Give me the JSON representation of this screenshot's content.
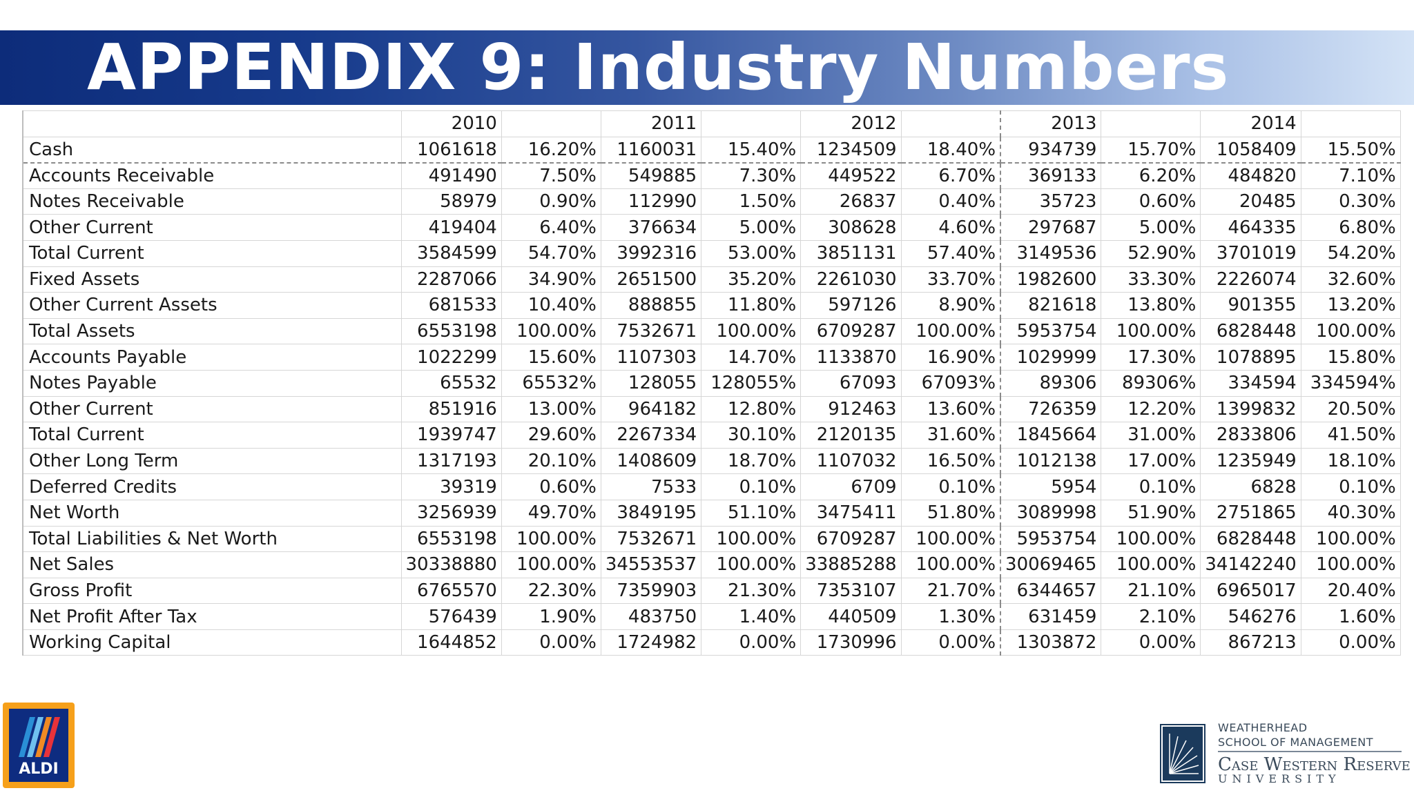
{
  "title": "APPENDIX 9: Industry Numbers",
  "table": {
    "years": [
      "2010",
      "2011",
      "2012",
      "2013",
      "2014"
    ],
    "rows": [
      {
        "label": "Cash",
        "values": [
          "1061618",
          "16.20%",
          "1160031",
          "15.40%",
          "1234509",
          "18.40%",
          "934739",
          "15.70%",
          "1058409",
          "15.50%"
        ]
      },
      {
        "label": "Accounts Receivable",
        "values": [
          "491490",
          "7.50%",
          "549885",
          "7.30%",
          "449522",
          "6.70%",
          "369133",
          "6.20%",
          "484820",
          "7.10%"
        ]
      },
      {
        "label": "Notes Receivable",
        "values": [
          "58979",
          "0.90%",
          "112990",
          "1.50%",
          "26837",
          "0.40%",
          "35723",
          "0.60%",
          "20485",
          "0.30%"
        ]
      },
      {
        "label": "Other Current",
        "values": [
          "419404",
          "6.40%",
          "376634",
          "5.00%",
          "308628",
          "4.60%",
          "297687",
          "5.00%",
          "464335",
          "6.80%"
        ]
      },
      {
        "label": "Total Current",
        "values": [
          "3584599",
          "54.70%",
          "3992316",
          "53.00%",
          "3851131",
          "57.40%",
          "3149536",
          "52.90%",
          "3701019",
          "54.20%"
        ]
      },
      {
        "label": "Fixed Assets",
        "values": [
          "2287066",
          "34.90%",
          "2651500",
          "35.20%",
          "2261030",
          "33.70%",
          "1982600",
          "33.30%",
          "2226074",
          "32.60%"
        ]
      },
      {
        "label": "Other Current Assets",
        "values": [
          "681533",
          "10.40%",
          "888855",
          "11.80%",
          "597126",
          "8.90%",
          "821618",
          "13.80%",
          "901355",
          "13.20%"
        ]
      },
      {
        "label": "Total Assets",
        "values": [
          "6553198",
          "100.00%",
          "7532671",
          "100.00%",
          "6709287",
          "100.00%",
          "5953754",
          "100.00%",
          "6828448",
          "100.00%"
        ]
      },
      {
        "label": "Accounts Payable",
        "values": [
          "1022299",
          "15.60%",
          "1107303",
          "14.70%",
          "1133870",
          "16.90%",
          "1029999",
          "17.30%",
          "1078895",
          "15.80%"
        ]
      },
      {
        "label": "Notes Payable",
        "values": [
          "65532",
          "65532%",
          "128055",
          "128055%",
          "67093",
          "67093%",
          "89306",
          "89306%",
          "334594",
          "334594%"
        ]
      },
      {
        "label": "Other Current",
        "values": [
          "851916",
          "13.00%",
          "964182",
          "12.80%",
          "912463",
          "13.60%",
          "726359",
          "12.20%",
          "1399832",
          "20.50%"
        ]
      },
      {
        "label": "Total Current",
        "values": [
          "1939747",
          "29.60%",
          "2267334",
          "30.10%",
          "2120135",
          "31.60%",
          "1845664",
          "31.00%",
          "2833806",
          "41.50%"
        ]
      },
      {
        "label": "Other Long Term",
        "values": [
          "1317193",
          "20.10%",
          "1408609",
          "18.70%",
          "1107032",
          "16.50%",
          "1012138",
          "17.00%",
          "1235949",
          "18.10%"
        ]
      },
      {
        "label": "Deferred Credits",
        "values": [
          "39319",
          "0.60%",
          "7533",
          "0.10%",
          "6709",
          "0.10%",
          "5954",
          "0.10%",
          "6828",
          "0.10%"
        ]
      },
      {
        "label": "Net Worth",
        "values": [
          "3256939",
          "49.70%",
          "3849195",
          "51.10%",
          "3475411",
          "51.80%",
          "3089998",
          "51.90%",
          "2751865",
          "40.30%"
        ]
      },
      {
        "label": "Total Liabilities & Net Worth",
        "values": [
          "6553198",
          "100.00%",
          "7532671",
          "100.00%",
          "6709287",
          "100.00%",
          "5953754",
          "100.00%",
          "6828448",
          "100.00%"
        ]
      },
      {
        "label": "Net Sales",
        "values": [
          "30338880",
          "100.00%",
          "34553537",
          "100.00%",
          "33885288",
          "100.00%",
          "30069465",
          "100.00%",
          "34142240",
          "100.00%"
        ]
      },
      {
        "label": "Gross Profit",
        "values": [
          "6765570",
          "22.30%",
          "7359903",
          "21.30%",
          "7353107",
          "21.70%",
          "6344657",
          "21.10%",
          "6965017",
          "20.40%"
        ]
      },
      {
        "label": "Net Profit After Tax",
        "values": [
          "576439",
          "1.90%",
          "483750",
          "1.40%",
          "440509",
          "1.30%",
          "631459",
          "2.10%",
          "546276",
          "1.60%"
        ]
      },
      {
        "label": "Working Capital",
        "values": [
          "1644852",
          "0.00%",
          "1724982",
          "0.00%",
          "1730996",
          "0.00%",
          "1303872",
          "0.00%",
          "867213",
          "0.00%"
        ]
      }
    ]
  },
  "logos": {
    "aldi": {
      "text": "ALDI",
      "colors": {
        "border": "#f6a01a",
        "background": "#0e2c80",
        "stripes": "#2a8fd6"
      }
    },
    "cwru": {
      "line1": "WEATHERHEAD",
      "line2": "SCHOOL OF MANAGEMENT",
      "line3": "Case Western Reserve",
      "line4": "UNIVERSITY"
    }
  },
  "colors": {
    "banner_start": "#0d2c7a",
    "banner_end": "#d4e3f6",
    "title_text": "#ffffff"
  }
}
